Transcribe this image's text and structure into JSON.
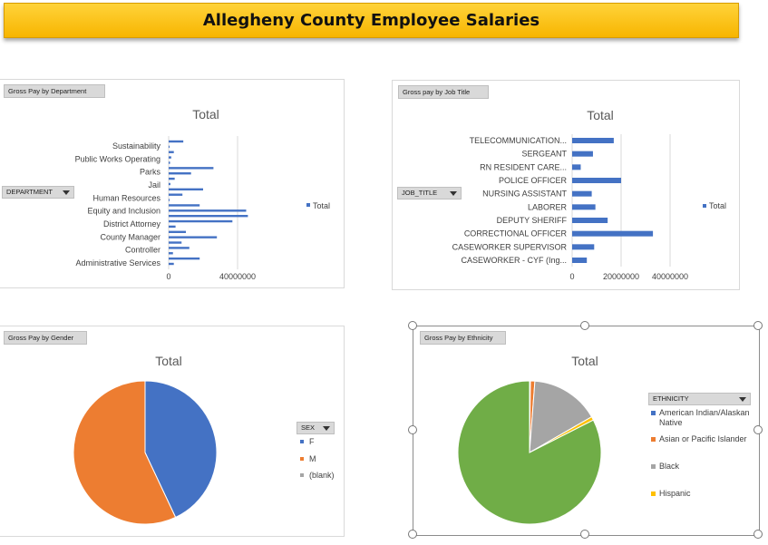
{
  "header": {
    "title": "Allegheny County Employee Salaries"
  },
  "colors": {
    "blue": "#4472c4",
    "orange": "#ed7d31",
    "gray": "#a5a5a5",
    "yellow": "#ffc000",
    "green": "#70ad47"
  },
  "chart_data": [
    {
      "type": "bar",
      "orientation": "horizontal",
      "tag": "Gross Pay by Department",
      "title": "Total",
      "filter_label": "DEPARTMENT",
      "legend": "Total",
      "labeled_categories": [
        "Administrative Services",
        "Controller",
        "County Manager",
        "District Attorney",
        "Equity and Inclusion",
        "Human Resources",
        "Jail",
        "Parks",
        "Public Works Operating",
        "Sustainability"
      ],
      "values": [
        8500000,
        400000,
        3000000,
        1500000,
        800000,
        26000000,
        13000000,
        3500000,
        1000000,
        20000000,
        8000000,
        500000,
        18000000,
        45000000,
        46000000,
        37000000,
        4000000,
        10000000,
        28000000,
        7500000,
        12000000,
        2500000,
        18000000,
        3000000
      ],
      "xticks": [
        0,
        40000000
      ],
      "xlim": [
        0,
        80000000
      ]
    },
    {
      "type": "bar",
      "orientation": "horizontal",
      "tag": "Gross pay by Job Title",
      "title": "Total",
      "filter_label": "JOB_TITLE",
      "legend": "Total",
      "categories": [
        "CASEWORKER - CYF (Ing...",
        "CASEWORKER SUPERVISOR",
        "CORRECTIONAL OFFICER",
        "DEPUTY SHERIFF",
        "LABORER",
        "NURSING ASSISTANT",
        "POLICE OFFICER",
        "RN RESIDENT CARE...",
        "SERGEANT",
        "TELECOMMUNICATION..."
      ],
      "values": [
        6000000,
        9000000,
        33000000,
        14500000,
        9500000,
        8000000,
        20000000,
        3500000,
        8500000,
        17000000
      ],
      "xticks": [
        0,
        20000000,
        40000000
      ],
      "xlim": [
        0,
        40000000
      ]
    },
    {
      "type": "pie",
      "tag": "Gross Pay by Gender",
      "title": "Total",
      "filter_label": "SEX",
      "slices": [
        {
          "label": "F",
          "value": 43,
          "color": "#4472c4"
        },
        {
          "label": "M",
          "value": 57,
          "color": "#ed7d31"
        },
        {
          "label": "(blank)",
          "value": 0,
          "color": "#a5a5a5"
        }
      ]
    },
    {
      "type": "pie",
      "tag": "Gross Pay by Ethnicity",
      "title": "Total",
      "filter_label": "ETHNICITY",
      "slices": [
        {
          "label": "American Indian/Alaskan Native",
          "value": 0.2,
          "color": "#4472c4"
        },
        {
          "label": "Asian or Pacific Islander",
          "value": 1.0,
          "color": "#ed7d31"
        },
        {
          "label": "Black",
          "value": 15.5,
          "color": "#a5a5a5"
        },
        {
          "label": "Hispanic",
          "value": 0.8,
          "color": "#ffc000"
        },
        {
          "label": "",
          "value": 82.5,
          "color": "#70ad47",
          "shown_in_legend": false
        }
      ]
    }
  ]
}
